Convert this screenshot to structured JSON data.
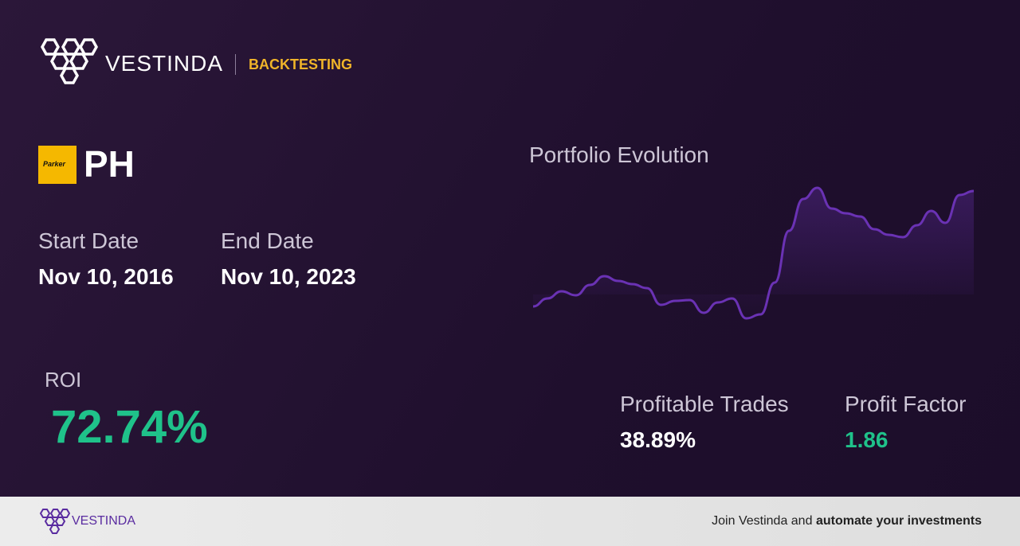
{
  "header": {
    "brand": "VESTINDA",
    "section": "BACKTESTING"
  },
  "asset": {
    "logo_text": "Parker",
    "ticker": "PH"
  },
  "dates": {
    "start_label": "Start Date",
    "start_value": "Nov 10, 2016",
    "end_label": "End Date",
    "end_value": "Nov 10, 2023"
  },
  "roi": {
    "label": "ROI",
    "value": "72.74%"
  },
  "stats": {
    "trades_label": "Profitable Trades",
    "trades_value": "38.89%",
    "factor_label": "Profit Factor",
    "factor_value": "1.86"
  },
  "chart_data": {
    "type": "line",
    "title": "Portfolio Evolution",
    "color": "#6a32b4",
    "values": [
      15,
      25,
      34,
      29,
      42,
      53,
      47,
      43,
      38,
      17,
      22,
      23,
      7,
      20,
      25,
      0,
      5,
      45,
      110,
      150,
      164,
      138,
      132,
      128,
      112,
      105,
      102,
      117,
      135,
      120,
      155,
      160
    ]
  },
  "footer": {
    "brand": "VESTINDA",
    "cta_text": "Join Vestinda and",
    "cta_bold": "automate your investments"
  }
}
